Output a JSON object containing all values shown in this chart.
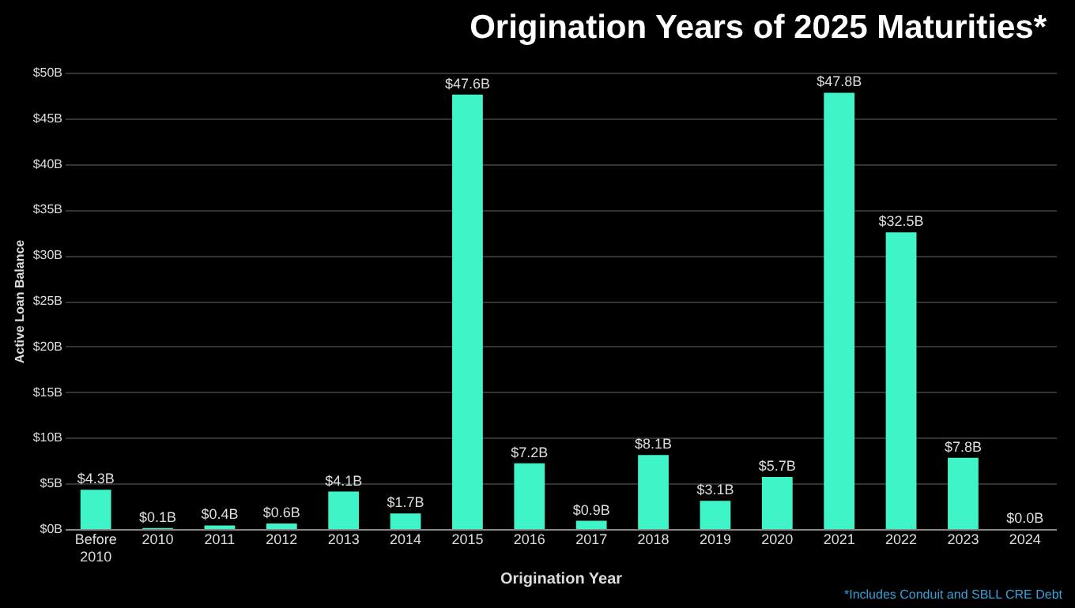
{
  "chart_data": {
    "type": "bar",
    "title": "Origination Years of 2025 Maturities*",
    "xlabel": "Origination Year",
    "ylabel": "Active Loan Balance",
    "categories": [
      "Before 2010",
      "2010",
      "2011",
      "2012",
      "2013",
      "2014",
      "2015",
      "2016",
      "2017",
      "2018",
      "2019",
      "2020",
      "2021",
      "2022",
      "2023",
      "2024"
    ],
    "values": [
      4.3,
      0.1,
      0.4,
      0.6,
      4.1,
      1.7,
      47.6,
      7.2,
      0.9,
      8.1,
      3.1,
      5.7,
      47.8,
      32.5,
      7.8,
      0.0
    ],
    "value_labels": [
      "$4.3B",
      "$0.1B",
      "$0.4B",
      "$0.6B",
      "$4.1B",
      "$1.7B",
      "$47.6B",
      "$7.2B",
      "$0.9B",
      "$8.1B",
      "$3.1B",
      "$5.7B",
      "$47.8B",
      "$32.5B",
      "$7.8B",
      "$0.0B"
    ],
    "color": "#3ff5c8",
    "ylim": [
      0,
      50
    ],
    "yticks": [
      {
        "value": 0,
        "label": "$0B"
      },
      {
        "value": 5,
        "label": "$5B"
      },
      {
        "value": 10,
        "label": "$10B"
      },
      {
        "value": 15,
        "label": "$15B"
      },
      {
        "value": 20,
        "label": "$20B"
      },
      {
        "value": 25,
        "label": "$25B"
      },
      {
        "value": 30,
        "label": "$30B"
      },
      {
        "value": 35,
        "label": "$35B"
      },
      {
        "value": 40,
        "label": "$40B"
      },
      {
        "value": 45,
        "label": "$45B"
      },
      {
        "value": 50,
        "label": "$50B"
      }
    ],
    "grid": "y",
    "annotations": [
      "*Includes Conduit and SBLL CRE Debt"
    ]
  }
}
